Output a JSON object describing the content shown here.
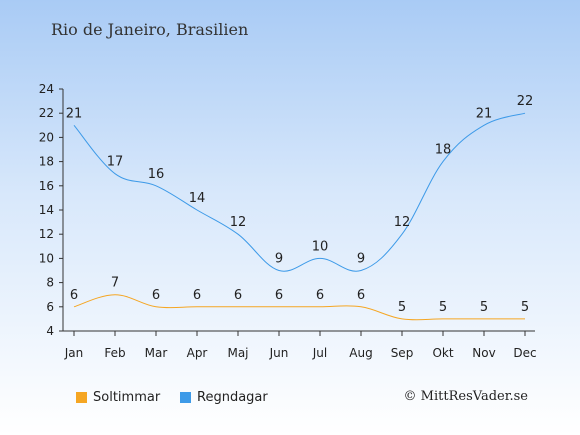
{
  "page": {
    "title": "Rio de Janeiro, Brasilien",
    "copyright": "© MittResVader.se"
  },
  "colors": {
    "sun": "#f5a623",
    "rain": "#3d9ae8"
  },
  "chart_data": {
    "type": "line",
    "categories": [
      "Jan",
      "Feb",
      "Mar",
      "Apr",
      "Maj",
      "Jun",
      "Jul",
      "Aug",
      "Sep",
      "Okt",
      "Nov",
      "Dec"
    ],
    "series": [
      {
        "name": "Soltimmar",
        "values": [
          6,
          7,
          6,
          6,
          6,
          6,
          6,
          6,
          5,
          5,
          5,
          5
        ]
      },
      {
        "name": "Regndagar",
        "values": [
          21,
          17,
          16,
          14,
          12,
          9,
          10,
          9,
          12,
          18,
          21,
          22
        ]
      }
    ],
    "yticks": [
      4,
      6,
      8,
      10,
      12,
      14,
      16,
      18,
      20,
      22,
      24
    ],
    "ylim": [
      4,
      24
    ],
    "grid": false,
    "legend_position": "bottom-left"
  }
}
